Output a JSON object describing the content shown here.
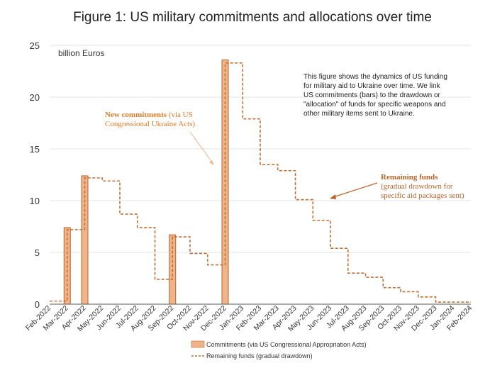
{
  "chart_data": {
    "type": "bar",
    "title": "Figure 1: US military commitments and allocations over time",
    "ylabel": "billion Euros",
    "ylim": [
      0,
      25
    ],
    "yticks": [
      0,
      5,
      10,
      15,
      20,
      25
    ],
    "categories": [
      "Feb-2022",
      "Mar-2022",
      "Apr-2022",
      "May-2022",
      "Jun-2022",
      "Jul-2022",
      "Aug-2022",
      "Sep-2022",
      "Oct-2022",
      "Nov-2022",
      "Dec-2022",
      "Jan-2023",
      "Feb-2023",
      "Mar-2023",
      "Apr-2023",
      "May-2023",
      "Jun-2023",
      "Jul-2023",
      "Aug-2023",
      "Sep-2023",
      "Oct-2023",
      "Nov-2023",
      "Dec-2023",
      "Jan-2024",
      "Feb-2024"
    ],
    "series": [
      {
        "name": "Commitments (via US Congressional Appropriation Acts)",
        "kind": "bar",
        "color": "#f0b48a",
        "edge": "#b8642a",
        "values": [
          0,
          7.4,
          12.4,
          0,
          0,
          0,
          0,
          6.7,
          0,
          0,
          23.6,
          0,
          0,
          0,
          0,
          0,
          0,
          0,
          0,
          0,
          0,
          0,
          0,
          0,
          0
        ]
      },
      {
        "name": "Remaining funds (gradual drawdown)",
        "kind": "step-line",
        "color": "#c07035",
        "values": [
          0.3,
          7.2,
          12.2,
          11.9,
          8.7,
          7.4,
          2.4,
          6.5,
          4.9,
          3.8,
          23.3,
          17.9,
          13.5,
          12.9,
          10.1,
          8.1,
          5.4,
          3.0,
          2.6,
          1.6,
          1.2,
          0.7,
          0.2,
          0.2,
          0.2
        ]
      }
    ],
    "annotations": {
      "note": [
        "This figure shows the dynamics of US funding",
        "for military aid to Ukraine over time. We link",
        "US commitments (bars) to the drawdown or",
        "\"allocation\" of funds for specific weapons and",
        "other military items sent to Ukraine."
      ],
      "commitments_title": "New commitments",
      "commitments_rest": " (via US",
      "commitments_line2": "Congressional Ukraine Acts)",
      "remaining_title": "Remaining funds",
      "remaining_line2": "(gradual drawdown for",
      "remaining_line3": "specific aid packages sent)",
      "accent_color": "#e07b28"
    },
    "legend": [
      "Commitments (via US Congressional Appropriation Acts)",
      "Remaining funds (gradual drawdown)"
    ]
  }
}
